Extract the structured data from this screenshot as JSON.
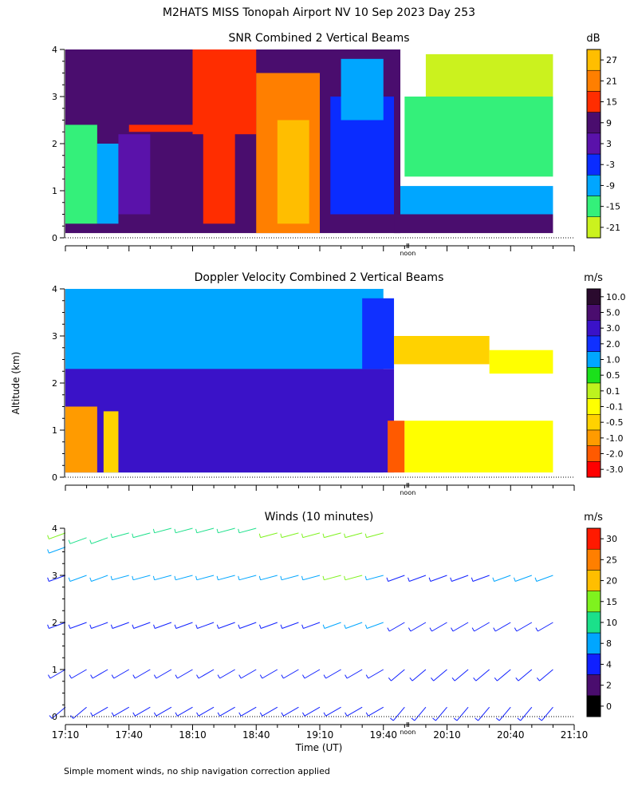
{
  "page": {
    "title": "M2HATS MISS Tonopah Airport NV  10 Sep 2023 Day 253",
    "ylabel": "Altitude (km)",
    "footnote": "Simple moment winds, no ship navigation correction applied"
  },
  "chart_data": [
    {
      "type": "heatmap",
      "title": "SNR Combined 2 Vertical Beams",
      "ylabel": "Altitude (km)",
      "ylim": [
        0,
        4
      ],
      "yticks": [
        "0",
        "1",
        "2",
        "3",
        "4"
      ],
      "xlim": [
        "17:10",
        "21:10"
      ],
      "xmarker": "noon",
      "colorbar": {
        "unit": "dB",
        "labels": [
          "27",
          "21",
          "15",
          "9",
          "3",
          "-3",
          "-9",
          "-15",
          "-21"
        ],
        "colors": [
          "#ffbe00",
          "#ff7f00",
          "#ff2d00",
          "#4a0d6e",
          "#5a12aa",
          "#0a2cff",
          "#00a6ff",
          "#34f07a",
          "#cbf21e"
        ]
      },
      "regions": [
        {
          "t0": "17:10",
          "t1": "19:48",
          "z0": 0.1,
          "z1": 4.0,
          "level": "9"
        },
        {
          "t0": "17:10",
          "t1": "17:25",
          "z0": 0.3,
          "z1": 2.4,
          "level": "-15"
        },
        {
          "t0": "17:25",
          "t1": "17:35",
          "z0": 0.3,
          "z1": 2.0,
          "level": "-9"
        },
        {
          "t0": "17:35",
          "t1": "17:50",
          "z0": 0.5,
          "z1": 2.2,
          "level": "3"
        },
        {
          "t0": "17:40",
          "t1": "18:30",
          "z0": 2.25,
          "z1": 2.4,
          "level": "15"
        },
        {
          "t0": "18:10",
          "t1": "18:40",
          "z0": 2.2,
          "z1": 4.0,
          "level": "15"
        },
        {
          "t0": "18:15",
          "t1": "18:30",
          "z0": 0.3,
          "z1": 2.3,
          "level": "15"
        },
        {
          "t0": "18:40",
          "t1": "19:10",
          "z0": 0.1,
          "z1": 3.5,
          "level": "21"
        },
        {
          "t0": "18:50",
          "t1": "19:05",
          "z0": 0.3,
          "z1": 2.5,
          "level": "27"
        },
        {
          "t0": "19:15",
          "t1": "19:45",
          "z0": 0.5,
          "z1": 3.0,
          "level": "-3"
        },
        {
          "t0": "19:20",
          "t1": "19:40",
          "z0": 2.5,
          "z1": 3.8,
          "level": "-9"
        },
        {
          "t0": "19:45",
          "t1": "21:00",
          "z0": 0.1,
          "z1": 0.5,
          "level": "9"
        },
        {
          "t0": "19:48",
          "t1": "21:00",
          "z0": 0.5,
          "z1": 1.1,
          "level": "-9"
        },
        {
          "t0": "19:50",
          "t1": "21:00",
          "z0": 1.3,
          "z1": 3.0,
          "level": "-15"
        },
        {
          "t0": "20:00",
          "t1": "21:00",
          "z0": 3.0,
          "z1": 3.9,
          "level": "-21"
        }
      ]
    },
    {
      "type": "heatmap",
      "title": "Doppler Velocity Combined 2 Vertical Beams",
      "ylabel": "Altitude (km)",
      "ylim": [
        0,
        4
      ],
      "yticks": [
        "0",
        "1",
        "2",
        "3",
        "4"
      ],
      "xlim": [
        "17:10",
        "21:10"
      ],
      "xmarker": "noon",
      "colorbar": {
        "unit": "m/s",
        "labels": [
          "10.0",
          "5.0",
          "3.0",
          "2.0",
          "1.0",
          "0.5",
          "0.1",
          "-0.1",
          "-0.5",
          "-1.0",
          "-2.0",
          "-3.0"
        ],
        "colors": [
          "#2a0a2e",
          "#4a0d6e",
          "#3a12c8",
          "#1030ff",
          "#00a6ff",
          "#1be01b",
          "#bdf21e",
          "#ffff00",
          "#ffd200",
          "#ff9b00",
          "#ff5a00",
          "#ff0000"
        ]
      },
      "regions": [
        {
          "t0": "17:10",
          "t1": "19:40",
          "z0": 0.1,
          "z1": 4.0,
          "level": "1.0"
        },
        {
          "t0": "17:10",
          "t1": "19:45",
          "z0": 0.1,
          "z1": 2.3,
          "level": "3.0"
        },
        {
          "t0": "17:10",
          "t1": "17:25",
          "z0": 0.1,
          "z1": 1.5,
          "level": "-1.0"
        },
        {
          "t0": "17:28",
          "t1": "17:35",
          "z0": 0.1,
          "z1": 1.4,
          "level": "-0.5"
        },
        {
          "t0": "19:30",
          "t1": "19:45",
          "z0": 2.3,
          "z1": 3.8,
          "level": "2.0"
        },
        {
          "t0": "19:42",
          "t1": "19:50",
          "z0": 0.1,
          "z1": 1.2,
          "level": "-2.0"
        },
        {
          "t0": "19:50",
          "t1": "21:00",
          "z0": 0.1,
          "z1": 1.2,
          "level": "-0.1"
        },
        {
          "t0": "19:45",
          "t1": "20:30",
          "z0": 2.4,
          "z1": 3.0,
          "level": "-0.5"
        },
        {
          "t0": "20:30",
          "t1": "21:00",
          "z0": 2.2,
          "z1": 2.7,
          "level": "-0.1"
        }
      ]
    },
    {
      "type": "barbs",
      "title": "Winds (10 minutes)",
      "ylabel": "Altitude (km)",
      "ylim": [
        0,
        4
      ],
      "yticks": [
        "0",
        "1",
        "2",
        "3",
        "4"
      ],
      "xlabel": "Time (UT)",
      "xticks": [
        "17:10",
        "17:40",
        "18:10",
        "18:40",
        "19:10",
        "19:40",
        "20:10",
        "20:40",
        "21:10"
      ],
      "xmarker": "noon",
      "colorbar": {
        "unit": "m/s",
        "labels": [
          "30",
          "25",
          "20",
          "15",
          "10",
          "8",
          "4",
          "2",
          "0"
        ],
        "colors": [
          "#ff1a00",
          "#ff7f00",
          "#ffbe00",
          "#7ff21e",
          "#1be08a",
          "#00a6ff",
          "#1020ff",
          "#4a0d6e",
          "#000000"
        ]
      },
      "profiles_10min": [
        {
          "time": "17:10",
          "levels": [
            [
              0.2,
              4,
              230
            ],
            [
              1.0,
              4,
              240
            ],
            [
              2.0,
              4,
              250
            ],
            [
              3.0,
              6,
              250
            ],
            [
              3.6,
              8,
              250
            ],
            [
              3.9,
              15,
              250
            ]
          ]
        },
        {
          "time": "17:20",
          "levels": [
            [
              0.2,
              4,
              230
            ],
            [
              1.0,
              4,
              240
            ],
            [
              2.0,
              6,
              250
            ],
            [
              3.0,
              8,
              250
            ],
            [
              3.8,
              10,
              250
            ]
          ]
        },
        {
          "time": "17:30",
          "levels": [
            [
              0.2,
              4,
              240
            ],
            [
              1.0,
              4,
              240
            ],
            [
              2.0,
              6,
              250
            ],
            [
              3.0,
              8,
              250
            ],
            [
              3.8,
              10,
              250
            ]
          ]
        },
        {
          "time": "17:40",
          "levels": [
            [
              0.2,
              4,
              240
            ],
            [
              1.0,
              4,
              240
            ],
            [
              2.0,
              6,
              250
            ],
            [
              3.0,
              8,
              255
            ],
            [
              3.9,
              10,
              255
            ]
          ]
        },
        {
          "time": "17:50",
          "levels": [
            [
              0.2,
              4,
              240
            ],
            [
              1.0,
              4,
              240
            ],
            [
              2.0,
              6,
              250
            ],
            [
              3.0,
              8,
              255
            ],
            [
              3.9,
              10,
              255
            ]
          ]
        },
        {
          "time": "18:00",
          "levels": [
            [
              0.2,
              4,
              240
            ],
            [
              1.0,
              4,
              240
            ],
            [
              2.0,
              6,
              250
            ],
            [
              3.0,
              8,
              255
            ],
            [
              4.0,
              10,
              255
            ]
          ]
        },
        {
          "time": "18:10",
          "levels": [
            [
              0.2,
              4,
              240
            ],
            [
              1.0,
              4,
              240
            ],
            [
              2.0,
              6,
              250
            ],
            [
              3.0,
              8,
              255
            ],
            [
              4.0,
              10,
              255
            ]
          ]
        },
        {
          "time": "18:20",
          "levels": [
            [
              0.2,
              4,
              240
            ],
            [
              1.0,
              4,
              240
            ],
            [
              2.0,
              6,
              250
            ],
            [
              3.0,
              8,
              255
            ],
            [
              4.0,
              10,
              255
            ]
          ]
        },
        {
          "time": "18:30",
          "levels": [
            [
              0.2,
              4,
              240
            ],
            [
              1.0,
              4,
              240
            ],
            [
              2.0,
              6,
              250
            ],
            [
              3.0,
              8,
              255
            ],
            [
              4.0,
              10,
              255
            ]
          ]
        },
        {
          "time": "18:40",
          "levels": [
            [
              0.2,
              4,
              240
            ],
            [
              1.0,
              4,
              240
            ],
            [
              2.0,
              6,
              250
            ],
            [
              3.0,
              8,
              255
            ],
            [
              4.0,
              10,
              255
            ]
          ]
        },
        {
          "time": "18:50",
          "levels": [
            [
              0.2,
              4,
              240
            ],
            [
              1.0,
              4,
              240
            ],
            [
              2.0,
              6,
              250
            ],
            [
              3.0,
              8,
              255
            ],
            [
              3.9,
              15,
              255
            ]
          ]
        },
        {
          "time": "19:00",
          "levels": [
            [
              0.2,
              4,
              240
            ],
            [
              1.0,
              4,
              240
            ],
            [
              2.0,
              6,
              250
            ],
            [
              3.0,
              8,
              255
            ],
            [
              3.9,
              15,
              255
            ]
          ]
        },
        {
          "time": "19:10",
          "levels": [
            [
              0.2,
              4,
              240
            ],
            [
              1.0,
              4,
              240
            ],
            [
              2.0,
              6,
              250
            ],
            [
              3.0,
              8,
              255
            ],
            [
              3.9,
              15,
              255
            ]
          ]
        },
        {
          "time": "19:20",
          "levels": [
            [
              0.2,
              4,
              240
            ],
            [
              1.0,
              4,
              240
            ],
            [
              2.0,
              8,
              250
            ],
            [
              3.0,
              15,
              255
            ],
            [
              3.9,
              15,
              255
            ]
          ]
        },
        {
          "time": "19:30",
          "levels": [
            [
              0.2,
              4,
              240
            ],
            [
              1.0,
              4,
              240
            ],
            [
              2.0,
              8,
              250
            ],
            [
              3.0,
              15,
              255
            ],
            [
              3.9,
              15,
              255
            ]
          ]
        },
        {
          "time": "19:40",
          "levels": [
            [
              0.2,
              4,
              240
            ],
            [
              1.0,
              4,
              240
            ],
            [
              2.0,
              8,
              250
            ],
            [
              3.0,
              8,
              255
            ],
            [
              3.9,
              15,
              255
            ]
          ]
        },
        {
          "time": "19:50",
          "levels": [
            [
              0.2,
              4,
              220
            ],
            [
              1.0,
              4,
              230
            ],
            [
              2.0,
              6,
              240
            ],
            [
              3.0,
              6,
              250
            ]
          ]
        },
        {
          "time": "20:00",
          "levels": [
            [
              0.2,
              4,
              220
            ],
            [
              1.0,
              4,
              230
            ],
            [
              2.0,
              6,
              240
            ],
            [
              3.0,
              6,
              250
            ]
          ]
        },
        {
          "time": "20:10",
          "levels": [
            [
              0.2,
              4,
              220
            ],
            [
              1.0,
              4,
              230
            ],
            [
              2.0,
              6,
              240
            ],
            [
              3.0,
              6,
              250
            ]
          ]
        },
        {
          "time": "20:20",
          "levels": [
            [
              0.2,
              4,
              220
            ],
            [
              1.0,
              4,
              230
            ],
            [
              2.0,
              6,
              240
            ],
            [
              3.0,
              6,
              250
            ]
          ]
        },
        {
          "time": "20:30",
          "levels": [
            [
              0.2,
              4,
              220
            ],
            [
              1.0,
              4,
              230
            ],
            [
              2.0,
              6,
              240
            ],
            [
              3.0,
              6,
              250
            ]
          ]
        },
        {
          "time": "20:40",
          "levels": [
            [
              0.2,
              4,
              220
            ],
            [
              1.0,
              4,
              230
            ],
            [
              2.0,
              6,
              240
            ],
            [
              3.0,
              8,
              250
            ]
          ]
        },
        {
          "time": "20:50",
          "levels": [
            [
              0.2,
              4,
              220
            ],
            [
              1.0,
              4,
              230
            ],
            [
              2.0,
              6,
              240
            ],
            [
              3.0,
              8,
              250
            ]
          ]
        },
        {
          "time": "21:00",
          "levels": [
            [
              0.2,
              4,
              220
            ],
            [
              1.0,
              4,
              230
            ],
            [
              2.0,
              6,
              240
            ],
            [
              3.0,
              8,
              250
            ]
          ]
        }
      ]
    }
  ]
}
